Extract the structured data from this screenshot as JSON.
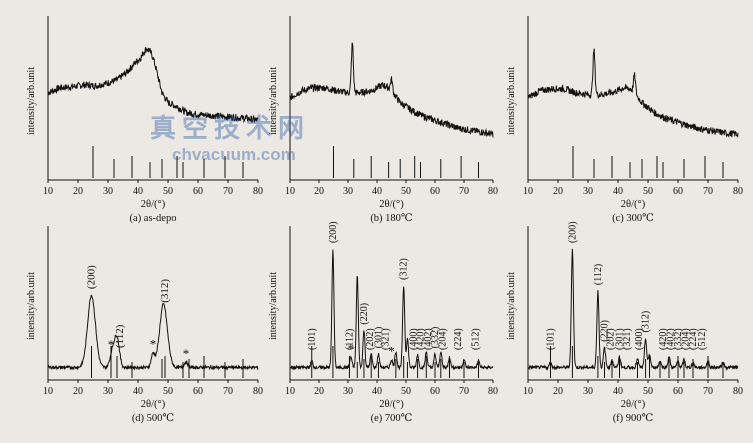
{
  "colors": {
    "background": "#ece9e4",
    "ink": "#111111",
    "watermark": "#3a6fb5"
  },
  "watermark": {
    "text_cn": "真空技术网",
    "url": "chvacuum.com"
  },
  "chart_data": [
    {
      "id": "a",
      "type": "line",
      "caption": "(a) as-depo",
      "xlabel": "2θ/(°)",
      "ylabel": "intensity/arb.unit",
      "xlim": [
        10,
        80
      ],
      "xticks": [
        10,
        20,
        30,
        40,
        50,
        60,
        70,
        80
      ],
      "series": [
        {
          "x": [
            10,
            14,
            18,
            22,
            26,
            30,
            33,
            36,
            39,
            41,
            42,
            43,
            44,
            45,
            46,
            47,
            48,
            50,
            53,
            56,
            60,
            64,
            68,
            72,
            76,
            80
          ],
          "y": [
            0.5,
            0.55,
            0.56,
            0.58,
            0.57,
            0.6,
            0.63,
            0.7,
            0.8,
            0.86,
            0.92,
            0.95,
            0.92,
            0.86,
            0.75,
            0.62,
            0.5,
            0.4,
            0.36,
            0.3,
            0.28,
            0.27,
            0.26,
            0.25,
            0.24,
            0.22
          ]
        }
      ],
      "peaks": [],
      "reference_lines": [
        25,
        32,
        38,
        44,
        48,
        53,
        55,
        62,
        69,
        75
      ],
      "stars": [],
      "labels": []
    },
    {
      "id": "b",
      "type": "line",
      "caption": "(b) 180℃",
      "xlabel": "2θ/(°)",
      "ylabel": "intensity/arb.unit",
      "xlim": [
        10,
        80
      ],
      "xticks": [
        10,
        20,
        30,
        40,
        50,
        60,
        70,
        80
      ],
      "series": [
        {
          "x": [
            10,
            14,
            18,
            22,
            26,
            30,
            34,
            38,
            42,
            44,
            46,
            48,
            52,
            56,
            60,
            64,
            68,
            72,
            76,
            80
          ],
          "y": [
            0.45,
            0.52,
            0.55,
            0.55,
            0.52,
            0.5,
            0.5,
            0.52,
            0.58,
            0.55,
            0.48,
            0.4,
            0.32,
            0.26,
            0.22,
            0.18,
            0.14,
            0.12,
            0.1,
            0.08
          ]
        }
      ],
      "peaks": [
        {
          "x": 31.5,
          "h": 0.5
        },
        {
          "x": 45,
          "h": 0.12
        }
      ],
      "reference_lines": [
        25,
        32,
        38,
        44,
        48,
        53,
        55,
        62,
        69,
        75
      ],
      "stars": [],
      "labels": []
    },
    {
      "id": "c",
      "type": "line",
      "caption": "(c) 300℃",
      "xlabel": "2θ/(°)",
      "ylabel": "intensity/arb.unit",
      "xlim": [
        10,
        80
      ],
      "xticks": [
        10,
        20,
        30,
        40,
        50,
        60,
        70,
        80
      ],
      "series": [
        {
          "x": [
            10,
            14,
            18,
            22,
            26,
            30,
            34,
            38,
            42,
            44,
            46,
            48,
            52,
            56,
            60,
            64,
            68,
            72,
            76,
            80
          ],
          "y": [
            0.45,
            0.52,
            0.54,
            0.54,
            0.5,
            0.48,
            0.48,
            0.5,
            0.55,
            0.54,
            0.48,
            0.4,
            0.3,
            0.24,
            0.2,
            0.16,
            0.13,
            0.11,
            0.09,
            0.08
          ]
        }
      ],
      "peaks": [
        {
          "x": 32,
          "h": 0.45
        },
        {
          "x": 45.5,
          "h": 0.18
        }
      ],
      "reference_lines": [
        25,
        32,
        38,
        44,
        48,
        53,
        55,
        62,
        69,
        75
      ],
      "stars": [],
      "labels": []
    },
    {
      "id": "d",
      "type": "line",
      "caption": "(d) 500℃",
      "xlabel": "2θ/(°)",
      "ylabel": "intensity/arb.unit",
      "xlim": [
        10,
        80
      ],
      "xticks": [
        10,
        20,
        30,
        40,
        50,
        60,
        70,
        80
      ],
      "series": [
        {
          "x": [
            10,
            80
          ],
          "y": [
            0.05,
            0.05
          ]
        }
      ],
      "peaks": [
        {
          "x": 24.5,
          "h": 0.55,
          "w": 1.3
        },
        {
          "x": 31.5,
          "h": 0.12,
          "w": 0.8
        },
        {
          "x": 33,
          "h": 0.22,
          "w": 0.8
        },
        {
          "x": 45,
          "h": 0.1,
          "w": 0.6
        },
        {
          "x": 48.5,
          "h": 0.48,
          "w": 1.3
        },
        {
          "x": 56,
          "h": 0.04,
          "w": 0.6
        }
      ],
      "reference_lines": [
        24.5,
        31,
        33,
        38,
        48,
        49,
        55,
        57,
        62,
        69,
        75
      ],
      "stars": [
        31,
        45,
        56
      ],
      "labels": [
        {
          "x": 24.5,
          "text": "(200)"
        },
        {
          "x": 34,
          "text": "(112)"
        },
        {
          "x": 49,
          "text": "(312)"
        }
      ]
    },
    {
      "id": "e",
      "type": "line",
      "caption": "(e) 700℃",
      "xlabel": "2θ/(°)",
      "ylabel": "intensity/arb.unit",
      "xlim": [
        10,
        80
      ],
      "xticks": [
        10,
        20,
        30,
        40,
        50,
        60,
        70,
        80
      ],
      "series": [
        {
          "x": [
            10,
            80
          ],
          "y": [
            0.05,
            0.05
          ]
        }
      ],
      "peaks": [
        {
          "x": 17.5,
          "h": 0.05
        },
        {
          "x": 24.8,
          "h": 0.9
        },
        {
          "x": 31,
          "h": 0.08
        },
        {
          "x": 33.2,
          "h": 0.7
        },
        {
          "x": 35.5,
          "h": 0.28
        },
        {
          "x": 38,
          "h": 0.1
        },
        {
          "x": 40.5,
          "h": 0.1
        },
        {
          "x": 45,
          "h": 0.06
        },
        {
          "x": 46.5,
          "h": 0.12
        },
        {
          "x": 49.2,
          "h": 0.62
        },
        {
          "x": 50.5,
          "h": 0.22
        },
        {
          "x": 54,
          "h": 0.1
        },
        {
          "x": 57,
          "h": 0.12
        },
        {
          "x": 60,
          "h": 0.1
        },
        {
          "x": 62,
          "h": 0.12
        },
        {
          "x": 65,
          "h": 0.08
        },
        {
          "x": 70,
          "h": 0.06
        },
        {
          "x": 75,
          "h": 0.05
        }
      ],
      "reference_lines": [
        17.5,
        24.8,
        30.5,
        33.2,
        35.5,
        38,
        40.5,
        46.5,
        49.2,
        50.5,
        54,
        57,
        60,
        62,
        65,
        70,
        75
      ],
      "stars": [
        31,
        45
      ],
      "labels": [
        {
          "x": 17.5,
          "text": "(101)"
        },
        {
          "x": 24.8,
          "text": "(200)"
        },
        {
          "x": 30.5,
          "text": "(112)"
        },
        {
          "x": 35.5,
          "text": "(220)"
        },
        {
          "x": 37.5,
          "text": "(202)"
        },
        {
          "x": 40.5,
          "text": "(301)"
        },
        {
          "x": 43,
          "text": "(321)"
        },
        {
          "x": 49.2,
          "text": "(312)"
        },
        {
          "x": 52.5,
          "text": "(400)"
        },
        {
          "x": 55,
          "text": "(420)"
        },
        {
          "x": 57.5,
          "text": "(402)"
        },
        {
          "x": 60,
          "text": "(332)"
        },
        {
          "x": 62.5,
          "text": "(204)"
        },
        {
          "x": 68,
          "text": "(224)"
        },
        {
          "x": 74,
          "text": "(512)"
        }
      ]
    },
    {
      "id": "f",
      "type": "line",
      "caption": "(f) 900℃",
      "xlabel": "2θ/(°)",
      "ylabel": "intensity/arb.unit",
      "xlim": [
        10,
        80
      ],
      "xticks": [
        10,
        20,
        30,
        40,
        50,
        60,
        70,
        80
      ],
      "series": [
        {
          "x": [
            10,
            80
          ],
          "y": [
            0.05,
            0.05
          ]
        }
      ],
      "peaks": [
        {
          "x": 17.5,
          "h": 0.04
        },
        {
          "x": 24.8,
          "h": 0.9
        },
        {
          "x": 33.3,
          "h": 0.58
        },
        {
          "x": 35.5,
          "h": 0.15
        },
        {
          "x": 38,
          "h": 0.06
        },
        {
          "x": 40.5,
          "h": 0.08
        },
        {
          "x": 46.5,
          "h": 0.06
        },
        {
          "x": 49.2,
          "h": 0.22
        },
        {
          "x": 50.5,
          "h": 0.1
        },
        {
          "x": 54,
          "h": 0.05
        },
        {
          "x": 57,
          "h": 0.08
        },
        {
          "x": 60,
          "h": 0.05
        },
        {
          "x": 62,
          "h": 0.06
        },
        {
          "x": 65,
          "h": 0.04
        },
        {
          "x": 70,
          "h": 0.05
        },
        {
          "x": 75,
          "h": 0.04
        }
      ],
      "reference_lines": [
        17.5,
        24.8,
        33.3,
        35.5,
        38,
        40.5,
        46.5,
        49.2,
        50.5,
        54,
        57,
        60,
        62,
        65,
        70,
        75
      ],
      "stars": [],
      "labels": [
        {
          "x": 17.5,
          "text": "(101)"
        },
        {
          "x": 24.8,
          "text": "(200)"
        },
        {
          "x": 33.3,
          "text": "(112)"
        },
        {
          "x": 35.5,
          "text": "(220)"
        },
        {
          "x": 37.5,
          "text": "(202)"
        },
        {
          "x": 40.5,
          "text": "(301)"
        },
        {
          "x": 43,
          "text": "(321)"
        },
        {
          "x": 47,
          "text": "(400)"
        },
        {
          "x": 49.2,
          "text": "(312)"
        },
        {
          "x": 55,
          "text": "(420)"
        },
        {
          "x": 57.5,
          "text": "(402)"
        },
        {
          "x": 60,
          "text": "(332)"
        },
        {
          "x": 62.5,
          "text": "(204)"
        },
        {
          "x": 65,
          "text": "(224)"
        },
        {
          "x": 68,
          "text": "(512)"
        }
      ]
    }
  ]
}
